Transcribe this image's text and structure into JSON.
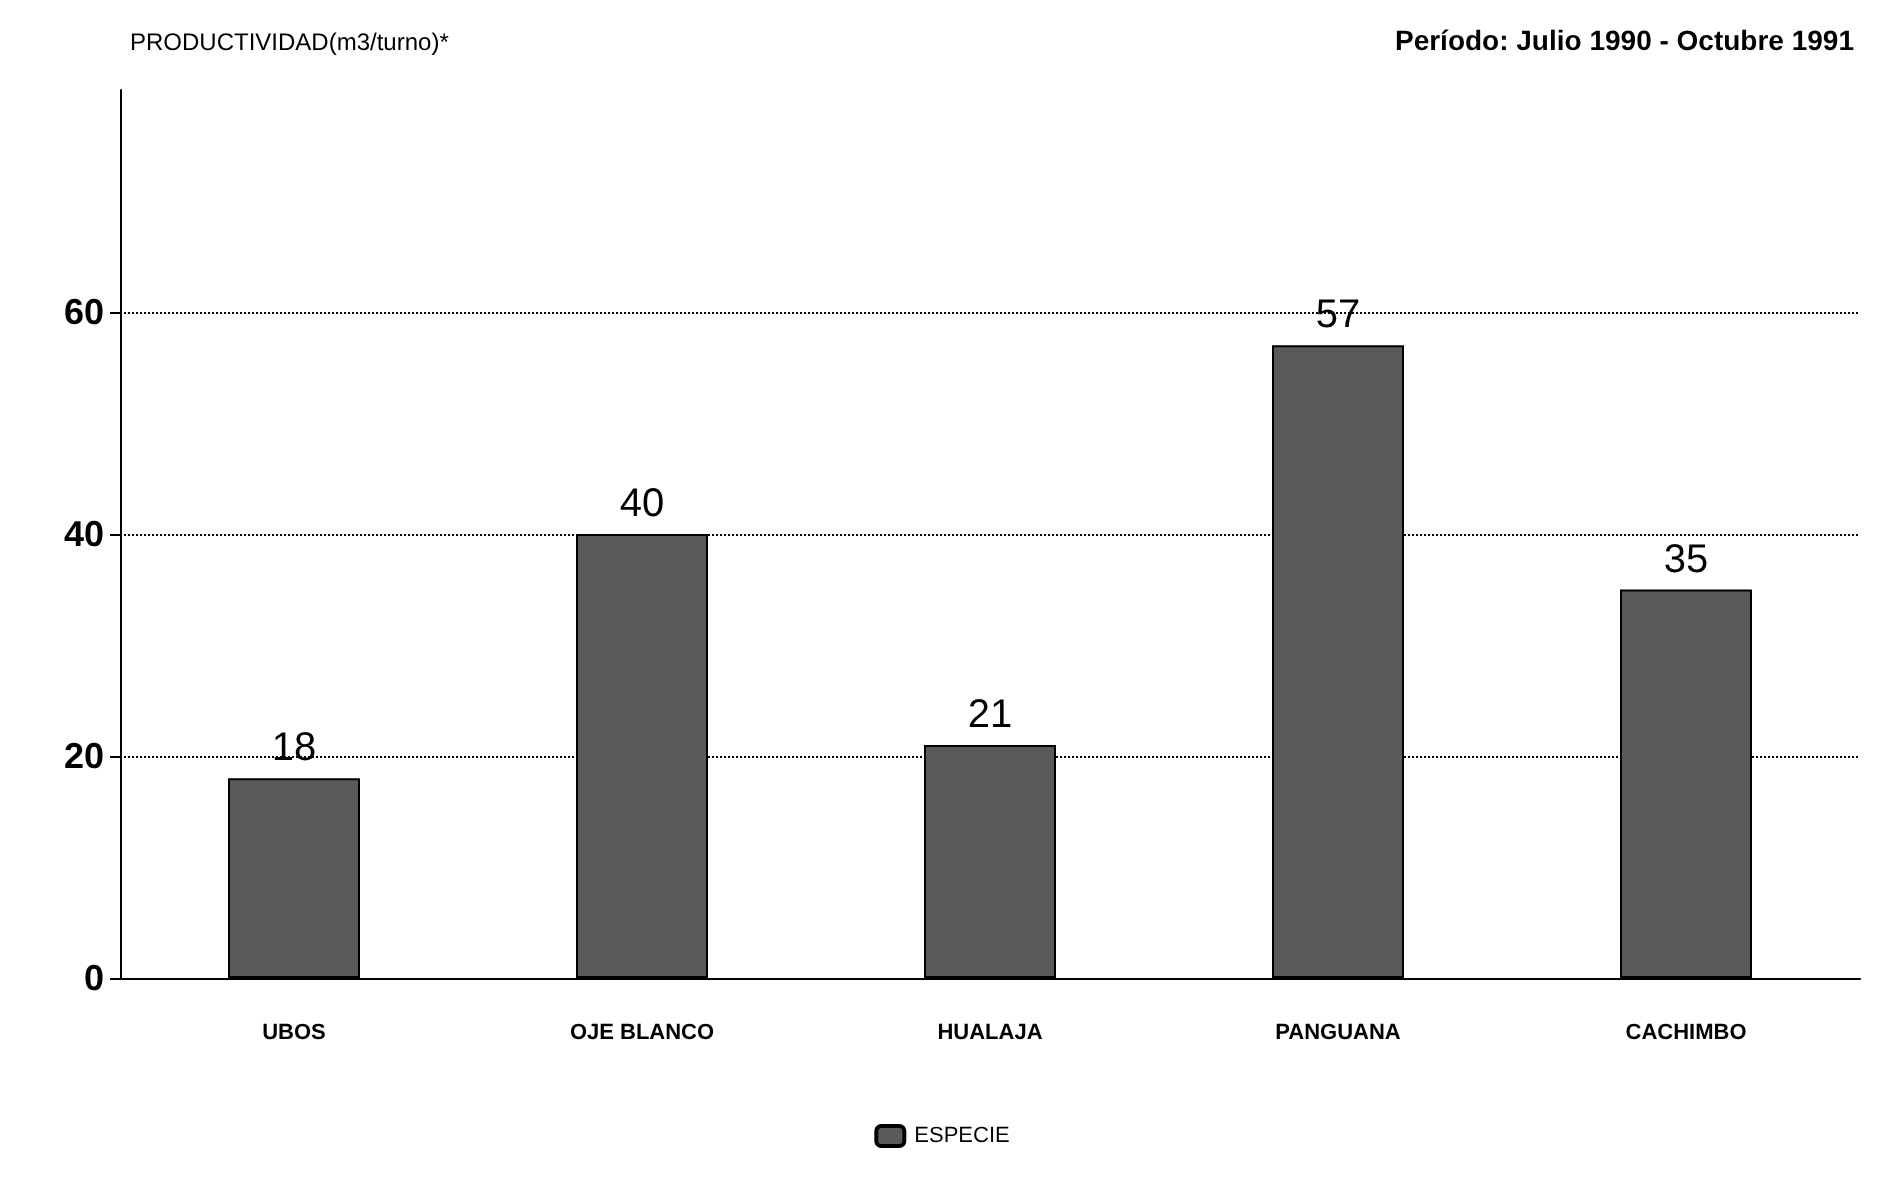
{
  "chart_data": {
    "type": "bar",
    "ylabel": "PRODUCTIVIDAD(m3/turno)*",
    "subtitle": "Período: Julio 1990 - Octubre 1991",
    "categories": [
      "UBOS",
      "OJE BLANCO",
      "HUALAJA",
      "PANGUANA",
      "CACHIMBO"
    ],
    "series": [
      {
        "name": "ESPECIE",
        "color": "#5a5a5a",
        "values": [
          18,
          40,
          21,
          57,
          35
        ]
      }
    ],
    "ylim": [
      0,
      80
    ],
    "yticks": [
      0,
      20,
      40,
      60
    ],
    "grid": "y",
    "line_style": "dotted",
    "legend": "bottom",
    "data_labels": true
  }
}
